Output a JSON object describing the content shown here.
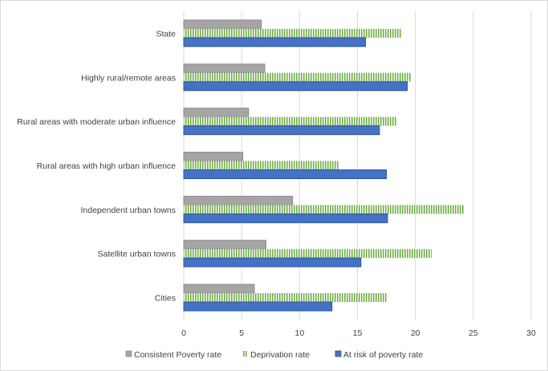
{
  "chart_data": {
    "type": "bar",
    "orientation": "horizontal",
    "title": "",
    "xlabel": "",
    "ylabel": "",
    "xlim": [
      0,
      30
    ],
    "xticks": [
      "0",
      "5",
      "10",
      "15",
      "20",
      "25",
      "30"
    ],
    "grid": true,
    "legend_position": "bottom",
    "categories": [
      "State",
      "Highly rural/remote areas",
      "Rural areas with moderate urban influence",
      "Rural areas with high urban influence",
      "Independent urban towns",
      "Satellite urban towns",
      "Cities"
    ],
    "series": [
      {
        "name": "Consistent Poverty rate",
        "color": "#a5a5a5",
        "pattern": "solid",
        "values": [
          6.7,
          7.0,
          5.6,
          5.1,
          9.4,
          7.1,
          6.1
        ]
      },
      {
        "name": "Deprivation rate",
        "color": "#70ad47",
        "pattern": "vertical-stripes",
        "values": [
          18.8,
          19.6,
          18.4,
          13.4,
          24.2,
          21.4,
          17.5
        ]
      },
      {
        "name": "At risk of poverty rate",
        "color": "#4472c4",
        "pattern": "solid",
        "values": [
          15.7,
          19.3,
          16.9,
          17.5,
          17.6,
          15.3,
          12.8
        ]
      }
    ]
  }
}
